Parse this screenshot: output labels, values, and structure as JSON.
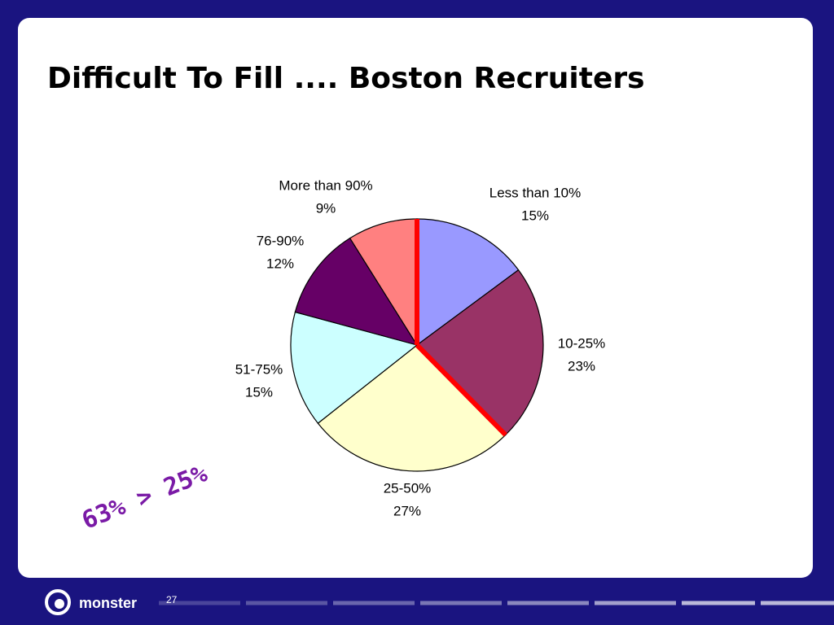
{
  "chart_data": {
    "type": "pie",
    "title": "Difficult To Fill .... Boston Recruiters",
    "categories": [
      "Less than 10%",
      "10-25%",
      "25-50%",
      "51-75%",
      "76-90%",
      "More than 90%"
    ],
    "values": [
      15,
      23,
      27,
      15,
      12,
      9
    ],
    "value_labels": [
      "15%",
      "23%",
      "27%",
      "15%",
      "12%",
      "9%"
    ],
    "colors": [
      "#9999ff",
      "#993366",
      "#ffffcc",
      "#ccffff",
      "#660066",
      "#ff8080"
    ],
    "annotation": "63% > 25%"
  },
  "footer": {
    "logo": "monster",
    "page_number": "27"
  }
}
